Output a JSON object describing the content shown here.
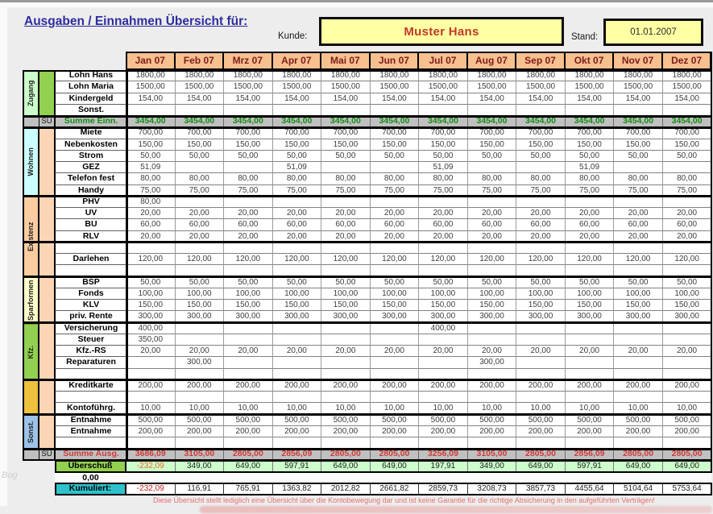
{
  "page": {
    "title": "Ausgaben / Einnahmen Übersicht für:",
    "customer_label": "Kunde:",
    "customer_value": "Muster Hans",
    "date_label": "Stand:",
    "date_value": "01.01.2007",
    "watermark": "Bog"
  },
  "colors": {
    "title_blue": "#2d2d9f",
    "customer_red": "#c0392b",
    "box_yellow": "#ffffa3",
    "month_header_peach": "#f7c08f",
    "month_header_text": "#7d1c1c",
    "sum_gray": "#c0c0c0",
    "income_green": "#168a16",
    "expense_red": "#cf3a3a",
    "surplus_green": "#92d050",
    "surplus_light_green": "#ccffcc",
    "cumulative_teal": "#2ec2cd",
    "accent_tan": "#fcd5b4",
    "disclaimer_red": "#e57070"
  },
  "table": {
    "months": [
      "Jan 07",
      "Feb 07",
      "Mrz 07",
      "Apr 07",
      "Mai 07",
      "Jun 07",
      "Jul 07",
      "Aug 07",
      "Sep 07",
      "Okt 07",
      "Nov 07",
      "Dez 07"
    ],
    "sections": [
      {
        "type": "group",
        "group_label": "Zugang",
        "group_bg": "#ccffcc",
        "accent_bg": "#92d050",
        "rows": [
          {
            "label": "Lohn Hans",
            "values": [
              "1800,00",
              "1800,00",
              "1800,00",
              "1800,00",
              "1800,00",
              "1800,00",
              "1800,00",
              "1800,00",
              "1800,00",
              "1800,00",
              "1800,00",
              "1800,00"
            ]
          },
          {
            "label": "Lohn Maria",
            "values": [
              "1500,00",
              "1500,00",
              "1500,00",
              "1500,00",
              "1500,00",
              "1500,00",
              "1500,00",
              "1500,00",
              "1500,00",
              "1500,00",
              "1500,00",
              "1500,00"
            ]
          },
          {
            "label": "Kindergeld",
            "values": [
              "154,00",
              "154,00",
              "154,00",
              "154,00",
              "154,00",
              "154,00",
              "154,00",
              "154,00",
              "154,00",
              "154,00",
              "154,00",
              "154,00"
            ]
          },
          {
            "label": "Sonst.",
            "values": [
              "",
              "",
              "",
              "",
              "",
              "",
              "",
              "",
              "",
              "",
              "",
              ""
            ]
          }
        ]
      },
      {
        "type": "sum",
        "su_label": "SU",
        "label": "Summe Einn.",
        "emphasis": "income",
        "values": [
          "3454,00",
          "3454,00",
          "3454,00",
          "3454,00",
          "3454,00",
          "3454,00",
          "3454,00",
          "3454,00",
          "3454,00",
          "3454,00",
          "3454,00",
          "3454,00"
        ]
      },
      {
        "type": "group",
        "group_label": "Wohnen",
        "group_bg": "#ccffff",
        "accent_bg": "#fcd5b4",
        "rows": [
          {
            "label": "Miete",
            "values": [
              "700,00",
              "700,00",
              "700,00",
              "700,00",
              "700,00",
              "700,00",
              "700,00",
              "700,00",
              "700,00",
              "700,00",
              "700,00",
              "700,00"
            ]
          },
          {
            "label": "Nebenkosten",
            "values": [
              "150,00",
              "150,00",
              "150,00",
              "150,00",
              "150,00",
              "150,00",
              "150,00",
              "150,00",
              "150,00",
              "150,00",
              "150,00",
              "150,00"
            ]
          },
          {
            "label": "Strom",
            "values": [
              "50,00",
              "50,00",
              "50,00",
              "50,00",
              "50,00",
              "50,00",
              "50,00",
              "50,00",
              "50,00",
              "50,00",
              "50,00",
              "50,00"
            ]
          },
          {
            "label": "GEZ",
            "values": [
              "51,09",
              "",
              "",
              "51,09",
              "",
              "",
              "51,09",
              "",
              "",
              "51,09",
              "",
              ""
            ]
          },
          {
            "label": "Telefon fest",
            "values": [
              "80,00",
              "80,00",
              "80,00",
              "80,00",
              "80,00",
              "80,00",
              "80,00",
              "80,00",
              "80,00",
              "80,00",
              "80,00",
              "80,00"
            ]
          },
          {
            "label": "Handy",
            "values": [
              "75,00",
              "75,00",
              "75,00",
              "75,00",
              "75,00",
              "75,00",
              "75,00",
              "75,00",
              "75,00",
              "75,00",
              "75,00",
              "75,00"
            ]
          }
        ]
      },
      {
        "type": "group",
        "group_label": "Existenz",
        "group_bg": "#fbcda0",
        "accent_bg": "#fcd5b4",
        "rows": [
          {
            "label": "PHV",
            "values": [
              "80,00",
              "",
              "",
              "",
              "",
              "",
              "",
              "",
              "",
              "",
              "",
              ""
            ]
          },
          {
            "label": "UV",
            "values": [
              "20,00",
              "20,00",
              "20,00",
              "20,00",
              "20,00",
              "20,00",
              "20,00",
              "20,00",
              "20,00",
              "20,00",
              "20,00",
              "20,00"
            ]
          },
          {
            "label": "BU",
            "values": [
              "60,00",
              "60,00",
              "60,00",
              "60,00",
              "60,00",
              "60,00",
              "60,00",
              "60,00",
              "60,00",
              "60,00",
              "60,00",
              "60,00"
            ]
          },
          {
            "label": "RLV",
            "values": [
              "20,00",
              "20,00",
              "20,00",
              "20,00",
              "20,00",
              "20,00",
              "20,00",
              "20,00",
              "20,00",
              "20,00",
              "20,00",
              "20,00"
            ]
          },
          {
            "label": "",
            "values": [
              "",
              "",
              "",
              "",
              "",
              "",
              "",
              "",
              "",
              "",
              "",
              ""
            ]
          },
          {
            "label": "Darlehen",
            "values": [
              "120,00",
              "120,00",
              "120,00",
              "120,00",
              "120,00",
              "120,00",
              "120,00",
              "120,00",
              "120,00",
              "120,00",
              "120,00",
              "120,00"
            ]
          },
          {
            "label": "",
            "values": [
              "",
              "",
              "",
              "",
              "",
              "",
              "",
              "",
              "",
              "",
              "",
              ""
            ]
          }
        ]
      },
      {
        "type": "group",
        "group_label": "Sparformen",
        "group_bg": "#ffffcc",
        "accent_bg": "#fcd5b4",
        "rows": [
          {
            "label": "BSP",
            "values": [
              "50,00",
              "50,00",
              "50,00",
              "50,00",
              "50,00",
              "50,00",
              "50,00",
              "50,00",
              "50,00",
              "50,00",
              "50,00",
              "50,00"
            ]
          },
          {
            "label": "Fonds",
            "values": [
              "100,00",
              "100,00",
              "100,00",
              "100,00",
              "100,00",
              "100,00",
              "100,00",
              "100,00",
              "100,00",
              "100,00",
              "100,00",
              "100,00"
            ]
          },
          {
            "label": "KLV",
            "values": [
              "150,00",
              "150,00",
              "150,00",
              "150,00",
              "150,00",
              "150,00",
              "150,00",
              "150,00",
              "150,00",
              "150,00",
              "150,00",
              "150,00"
            ]
          },
          {
            "label": "priv. Rente",
            "values": [
              "300,00",
              "300,00",
              "300,00",
              "300,00",
              "300,00",
              "300,00",
              "300,00",
              "300,00",
              "300,00",
              "300,00",
              "300,00",
              "300,00"
            ]
          }
        ]
      },
      {
        "type": "group",
        "group_label": "Kfz.",
        "group_bg": "#92d050",
        "accent_bg": "#fcd5b4",
        "rows": [
          {
            "label": "Versicherung",
            "values": [
              "400,00",
              "",
              "",
              "",
              "",
              "",
              "400,00",
              "",
              "",
              "",
              "",
              ""
            ]
          },
          {
            "label": "Steuer",
            "values": [
              "350,00",
              "",
              "",
              "",
              "",
              "",
              "",
              "",
              "",
              "",
              "",
              ""
            ]
          },
          {
            "label": "Kfz.-RS",
            "values": [
              "20,00",
              "20,00",
              "20,00",
              "20,00",
              "20,00",
              "20,00",
              "20,00",
              "20,00",
              "20,00",
              "20,00",
              "20,00",
              "20,00"
            ]
          },
          {
            "label": "Reparaturen",
            "values": [
              "",
              "300,00",
              "",
              "",
              "",
              "",
              "",
              "300,00",
              "",
              "",
              "",
              ""
            ]
          },
          {
            "label": "",
            "values": [
              "",
              "",
              "",
              "",
              "",
              "",
              "",
              "",
              "",
              "",
              "",
              ""
            ]
          }
        ]
      },
      {
        "type": "group",
        "group_label": "",
        "group_bg": "#edc13b",
        "accent_bg": "#fcd5b4",
        "rows": [
          {
            "label": "Kreditkarte",
            "values": [
              "200,00",
              "200,00",
              "200,00",
              "200,00",
              "200,00",
              "200,00",
              "200,00",
              "200,00",
              "200,00",
              "200,00",
              "200,00",
              "200,00"
            ]
          },
          {
            "label": "",
            "values": [
              "",
              "",
              "",
              "",
              "",
              "",
              "",
              "",
              "",
              "",
              "",
              ""
            ]
          },
          {
            "label": "Kontoführg.",
            "values": [
              "10,00",
              "10,00",
              "10,00",
              "10,00",
              "10,00",
              "10,00",
              "10,00",
              "10,00",
              "10,00",
              "10,00",
              "10,00",
              "10,00"
            ]
          }
        ]
      },
      {
        "type": "group",
        "group_label": "Sonst.",
        "group_bg": "#9cc2e8",
        "accent_bg": "#fcd5b4",
        "rows": [
          {
            "label": "Entnahme",
            "values": [
              "500,00",
              "500,00",
              "500,00",
              "500,00",
              "500,00",
              "500,00",
              "500,00",
              "500,00",
              "500,00",
              "500,00",
              "500,00",
              "500,00"
            ]
          },
          {
            "label": "Entnahme",
            "values": [
              "200,00",
              "200,00",
              "200,00",
              "200,00",
              "200,00",
              "200,00",
              "200,00",
              "200,00",
              "200,00",
              "200,00",
              "200,00",
              "200,00"
            ]
          },
          {
            "label": "",
            "values": [
              "",
              "",
              "",
              "",
              "",
              "",
              "",
              "",
              "",
              "",
              "",
              ""
            ]
          }
        ]
      },
      {
        "type": "sum",
        "su_label": "SU",
        "label": "Summe Ausg.",
        "emphasis": "expense",
        "values": [
          "3686,09",
          "3105,00",
          "2805,00",
          "2856,09",
          "2805,00",
          "2805,00",
          "3256,09",
          "3105,00",
          "2805,00",
          "2856,09",
          "2805,00",
          "2805,00"
        ]
      },
      {
        "type": "surplus",
        "label": "Überschuß",
        "label_bg": "#92d050",
        "values_bg": "#ccffcc",
        "values": [
          "-232,09",
          "349,00",
          "649,00",
          "597,91",
          "649,00",
          "649,00",
          "197,91",
          "349,00",
          "649,00",
          "597,91",
          "649,00",
          "649,00"
        ]
      },
      {
        "type": "spacer",
        "label": "0,00"
      },
      {
        "type": "cumulative",
        "label": "Kumuliert:",
        "label_bg": "#2ec2cd",
        "values": [
          "-232,09",
          "116,91",
          "765,91",
          "1363,82",
          "2012,82",
          "2661,82",
          "2859,73",
          "3208,73",
          "3857,73",
          "4455,64",
          "5104,64",
          "5753,64"
        ]
      }
    ],
    "footer_note": "Diese Übersicht stellt lediglich eine Übersicht über die Kontobewegung dar und ist keine Garantie für die richtige Absicherung in den aufgeführten Verträgen!"
  }
}
